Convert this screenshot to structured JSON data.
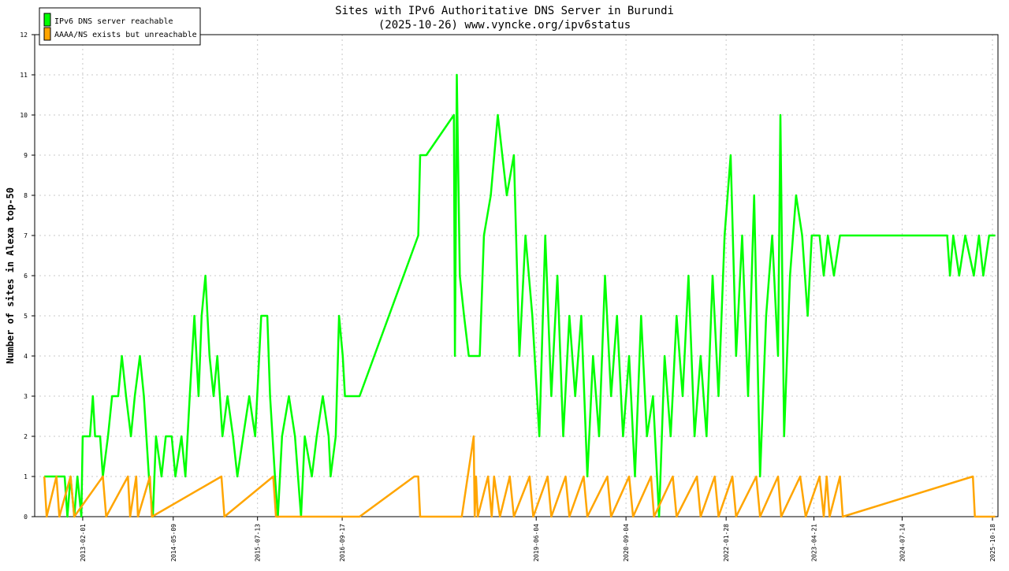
{
  "chart_data": {
    "type": "line",
    "title": "Sites with IPv6 Authoritative DNS Server in Burundi",
    "subtitle": "(2025-10-26) www.vyncke.org/ipv6status",
    "xlabel": "",
    "ylabel": "Number of sites in Alexa top-50",
    "ylim": [
      0,
      12
    ],
    "y_ticks": [
      "0",
      "1",
      "2",
      "3",
      "4",
      "5",
      "6",
      "7",
      "8",
      "9",
      "10",
      "11",
      "12"
    ],
    "x_ticks": [
      "2013-02-01",
      "2014-05-09",
      "2015-07-13",
      "2016-09-17",
      "2019-06-04",
      "2020-09-04",
      "2022-01-28",
      "2023-04-21",
      "2024-07-14",
      "2025-10-18"
    ],
    "x_range": [
      "2012-06-01",
      "2025-11-15"
    ],
    "grid": true,
    "legend_position": "top-left",
    "series": [
      {
        "name": "IPv6 DNS server reachable",
        "color": "#00ff00",
        "points": [
          [
            "2012-07-20",
            1
          ],
          [
            "2012-11-01",
            1
          ],
          [
            "2012-11-15",
            0
          ],
          [
            "2012-12-01",
            1
          ],
          [
            "2012-12-20",
            0
          ],
          [
            "2013-01-05",
            1
          ],
          [
            "2013-01-25",
            0
          ],
          [
            "2013-02-01",
            2
          ],
          [
            "2013-03-10",
            2
          ],
          [
            "2013-03-25",
            3
          ],
          [
            "2013-04-05",
            2
          ],
          [
            "2013-05-01",
            2
          ],
          [
            "2013-05-15",
            1
          ],
          [
            "2013-06-10",
            2
          ],
          [
            "2013-07-01",
            3
          ],
          [
            "2013-08-01",
            3
          ],
          [
            "2013-08-20",
            4
          ],
          [
            "2013-09-10",
            3
          ],
          [
            "2013-10-05",
            2
          ],
          [
            "2013-10-25",
            3
          ],
          [
            "2013-11-20",
            4
          ],
          [
            "2013-12-10",
            3
          ],
          [
            "2014-01-05",
            1
          ],
          [
            "2014-01-25",
            0
          ],
          [
            "2014-02-10",
            2
          ],
          [
            "2014-03-10",
            1
          ],
          [
            "2014-04-01",
            2
          ],
          [
            "2014-05-01",
            2
          ],
          [
            "2014-05-20",
            1
          ],
          [
            "2014-06-20",
            2
          ],
          [
            "2014-07-10",
            1
          ],
          [
            "2014-08-01",
            3
          ],
          [
            "2014-08-25",
            5
          ],
          [
            "2014-09-15",
            3
          ],
          [
            "2014-10-01",
            5
          ],
          [
            "2014-10-20",
            6
          ],
          [
            "2014-11-10",
            4
          ],
          [
            "2014-12-01",
            3
          ],
          [
            "2014-12-20",
            4
          ],
          [
            "2015-01-15",
            2
          ],
          [
            "2015-02-10",
            3
          ],
          [
            "2015-03-10",
            2
          ],
          [
            "2015-04-01",
            1
          ],
          [
            "2015-05-01",
            2
          ],
          [
            "2015-06-01",
            3
          ],
          [
            "2015-07-01",
            2
          ],
          [
            "2015-08-01",
            5
          ],
          [
            "2015-09-01",
            5
          ],
          [
            "2015-09-15",
            3
          ],
          [
            "2015-10-10",
            1
          ],
          [
            "2015-10-25",
            0
          ],
          [
            "2015-11-15",
            2
          ],
          [
            "2015-12-20",
            3
          ],
          [
            "2016-01-20",
            2
          ],
          [
            "2016-02-20",
            0
          ],
          [
            "2016-03-10",
            2
          ],
          [
            "2016-04-15",
            1
          ],
          [
            "2016-05-10",
            2
          ],
          [
            "2016-06-10",
            3
          ],
          [
            "2016-07-10",
            2
          ],
          [
            "2016-07-20",
            1
          ],
          [
            "2016-08-15",
            2
          ],
          [
            "2016-09-01",
            5
          ],
          [
            "2016-09-20",
            4
          ],
          [
            "2016-10-01",
            3
          ],
          [
            "2016-12-15",
            3
          ],
          [
            "2017-10-10",
            7
          ],
          [
            "2017-10-20",
            9
          ],
          [
            "2017-11-20",
            9
          ],
          [
            "2018-04-10",
            10
          ],
          [
            "2018-04-15",
            4
          ],
          [
            "2018-04-25",
            11
          ],
          [
            "2018-05-10",
            6
          ],
          [
            "2018-06-01",
            5
          ],
          [
            "2018-06-25",
            4
          ],
          [
            "2018-08-20",
            4
          ],
          [
            "2018-09-10",
            7
          ],
          [
            "2018-10-15",
            8
          ],
          [
            "2018-11-20",
            10
          ],
          [
            "2019-01-05",
            8
          ],
          [
            "2019-02-10",
            9
          ],
          [
            "2019-03-10",
            4
          ],
          [
            "2019-04-10",
            7
          ],
          [
            "2019-05-15",
            5
          ],
          [
            "2019-06-20",
            2
          ],
          [
            "2019-07-20",
            7
          ],
          [
            "2019-08-20",
            3
          ],
          [
            "2019-09-20",
            6
          ],
          [
            "2019-10-20",
            2
          ],
          [
            "2019-11-20",
            5
          ],
          [
            "2019-12-20",
            3
          ],
          [
            "2020-01-20",
            5
          ],
          [
            "2020-02-20",
            1
          ],
          [
            "2020-03-20",
            4
          ],
          [
            "2020-04-20",
            2
          ],
          [
            "2020-05-20",
            6
          ],
          [
            "2020-06-20",
            3
          ],
          [
            "2020-07-20",
            5
          ],
          [
            "2020-08-20",
            2
          ],
          [
            "2020-09-20",
            4
          ],
          [
            "2020-10-20",
            1
          ],
          [
            "2020-11-20",
            5
          ],
          [
            "2020-12-20",
            2
          ],
          [
            "2021-01-20",
            3
          ],
          [
            "2021-02-20",
            0
          ],
          [
            "2021-03-20",
            4
          ],
          [
            "2021-04-20",
            2
          ],
          [
            "2021-05-20",
            5
          ],
          [
            "2021-06-20",
            3
          ],
          [
            "2021-07-20",
            6
          ],
          [
            "2021-08-20",
            2
          ],
          [
            "2021-09-20",
            4
          ],
          [
            "2021-10-20",
            2
          ],
          [
            "2021-11-20",
            6
          ],
          [
            "2021-12-20",
            3
          ],
          [
            "2022-01-20",
            7
          ],
          [
            "2022-02-20",
            9
          ],
          [
            "2022-03-20",
            4
          ],
          [
            "2022-04-20",
            7
          ],
          [
            "2022-05-20",
            3
          ],
          [
            "2022-06-20",
            8
          ],
          [
            "2022-07-20",
            1
          ],
          [
            "2022-08-20",
            5
          ],
          [
            "2022-09-20",
            7
          ],
          [
            "2022-10-20",
            4
          ],
          [
            "2022-11-01",
            10
          ],
          [
            "2022-11-20",
            2
          ],
          [
            "2022-12-20",
            6
          ],
          [
            "2023-01-20",
            8
          ],
          [
            "2023-02-20",
            7
          ],
          [
            "2023-03-20",
            5
          ],
          [
            "2023-04-10",
            7
          ],
          [
            "2023-05-20",
            7
          ],
          [
            "2023-06-10",
            6
          ],
          [
            "2023-07-01",
            7
          ],
          [
            "2023-08-01",
            6
          ],
          [
            "2023-09-01",
            7
          ],
          [
            "2025-03-01",
            7
          ],
          [
            "2025-03-15",
            6
          ],
          [
            "2025-04-01",
            7
          ],
          [
            "2025-05-01",
            6
          ],
          [
            "2025-06-01",
            7
          ],
          [
            "2025-07-15",
            6
          ],
          [
            "2025-08-10",
            7
          ],
          [
            "2025-09-01",
            6
          ],
          [
            "2025-10-01",
            7
          ],
          [
            "2025-11-01",
            7
          ]
        ]
      },
      {
        "name": "AAAA/NS exists but unreachable",
        "color": "#ffa500",
        "points": [
          [
            "2012-07-20",
            1
          ],
          [
            "2012-08-01",
            0
          ],
          [
            "2012-09-20",
            1
          ],
          [
            "2012-10-05",
            0
          ],
          [
            "2012-12-01",
            1
          ],
          [
            "2012-12-20",
            0
          ],
          [
            "2013-05-15",
            1
          ],
          [
            "2013-06-01",
            0
          ],
          [
            "2013-09-20",
            1
          ],
          [
            "2013-10-01",
            0
          ],
          [
            "2013-11-01",
            1
          ],
          [
            "2013-11-10",
            0
          ],
          [
            "2014-01-10",
            1
          ],
          [
            "2014-01-20",
            0
          ],
          [
            "2015-01-10",
            1
          ],
          [
            "2015-01-25",
            0
          ],
          [
            "2015-10-01",
            1
          ],
          [
            "2015-10-15",
            0
          ],
          [
            "2016-12-15",
            0
          ],
          [
            "2017-09-20",
            1
          ],
          [
            "2017-10-10",
            1
          ],
          [
            "2017-10-20",
            0
          ],
          [
            "2018-04-10",
            0
          ],
          [
            "2018-05-20",
            0
          ],
          [
            "2018-07-20",
            2
          ],
          [
            "2018-07-25",
            0
          ],
          [
            "2018-08-01",
            1
          ],
          [
            "2018-08-10",
            0
          ],
          [
            "2018-10-01",
            1
          ],
          [
            "2018-10-20",
            0
          ],
          [
            "2018-11-01",
            1
          ],
          [
            "2018-12-01",
            0
          ],
          [
            "2019-01-20",
            1
          ],
          [
            "2019-02-10",
            0
          ],
          [
            "2019-05-01",
            1
          ],
          [
            "2019-05-20",
            0
          ],
          [
            "2019-08-01",
            1
          ],
          [
            "2019-08-20",
            0
          ],
          [
            "2019-11-01",
            1
          ],
          [
            "2019-11-20",
            0
          ],
          [
            "2020-02-01",
            1
          ],
          [
            "2020-02-20",
            0
          ],
          [
            "2020-06-01",
            1
          ],
          [
            "2020-06-20",
            0
          ],
          [
            "2020-09-20",
            1
          ],
          [
            "2020-10-10",
            0
          ],
          [
            "2021-01-10",
            1
          ],
          [
            "2021-01-25",
            0
          ],
          [
            "2021-05-01",
            1
          ],
          [
            "2021-05-20",
            0
          ],
          [
            "2021-09-01",
            1
          ],
          [
            "2021-09-20",
            0
          ],
          [
            "2021-12-01",
            1
          ],
          [
            "2021-12-20",
            0
          ],
          [
            "2022-03-01",
            1
          ],
          [
            "2022-03-20",
            0
          ],
          [
            "2022-07-01",
            1
          ],
          [
            "2022-07-20",
            0
          ],
          [
            "2022-10-20",
            1
          ],
          [
            "2022-11-05",
            0
          ],
          [
            "2023-02-10",
            1
          ],
          [
            "2023-03-10",
            0
          ],
          [
            "2023-05-20",
            1
          ],
          [
            "2023-06-10",
            0
          ],
          [
            "2023-06-25",
            1
          ],
          [
            "2023-07-10",
            0
          ],
          [
            "2023-09-01",
            1
          ],
          [
            "2023-09-15",
            0
          ],
          [
            "2025-07-10",
            1
          ],
          [
            "2025-07-20",
            0
          ],
          [
            "2025-11-01",
            0
          ]
        ]
      }
    ]
  }
}
